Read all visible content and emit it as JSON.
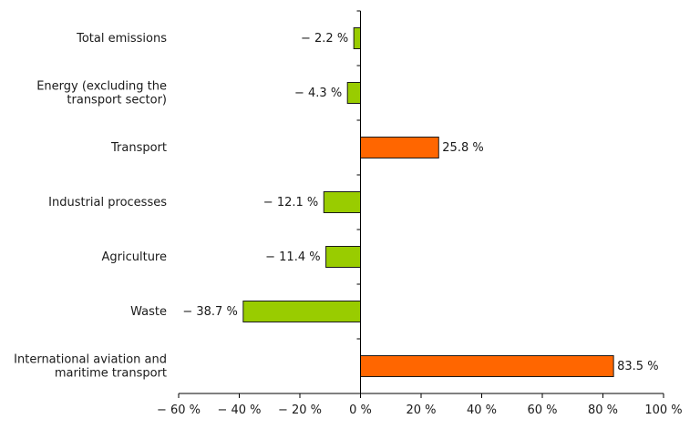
{
  "chart_data": {
    "type": "bar",
    "orientation": "horizontal",
    "categories": [
      [
        "Total emissions"
      ],
      [
        "Energy (excluding the",
        "transport sector)"
      ],
      [
        "Transport"
      ],
      [
        "Industrial processes"
      ],
      [
        "Agriculture"
      ],
      [
        "Waste"
      ],
      [
        "International aviation and",
        "maritime transport"
      ]
    ],
    "values": [
      -2.2,
      -4.3,
      25.8,
      -12.1,
      -11.4,
      -38.7,
      83.5
    ],
    "value_labels": [
      "− 2.2 %",
      "− 4.3 %",
      "25.8 %",
      "− 12.1 %",
      "− 11.4 %",
      "− 38.7 %",
      "83.5 %"
    ],
    "colors": {
      "negative": "#99cc00",
      "positive": "#ff6600",
      "edge": "#1a1a1a"
    },
    "xlim": [
      -60,
      100
    ],
    "xticks": [
      -60,
      -40,
      -20,
      0,
      20,
      40,
      60,
      80,
      100
    ],
    "xtick_labels": [
      "− 60 %",
      "− 40 %",
      "− 20 %",
      "0 %",
      "20 %",
      "40 %",
      "60 %",
      "80 %",
      "100 %"
    ],
    "grid": false,
    "legend": "none"
  }
}
